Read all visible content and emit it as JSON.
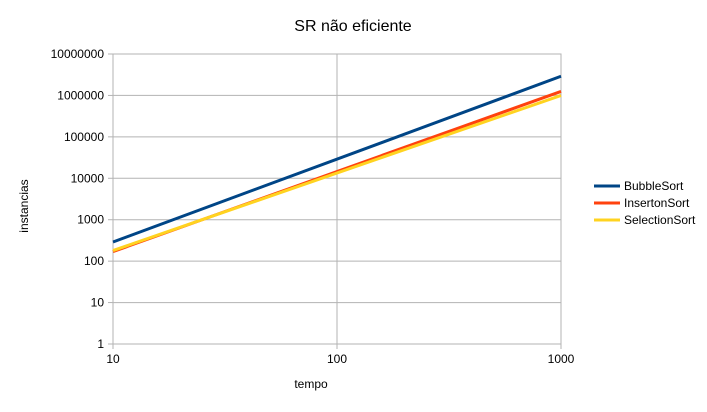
{
  "chart_data": {
    "type": "line",
    "title": "SR não eficiente",
    "xlabel": "tempo",
    "ylabel": "instancias",
    "x_scale": "log",
    "y_scale": "log",
    "xlim": [
      10,
      1000
    ],
    "ylim": [
      1,
      10000000
    ],
    "x_ticks": [
      "10",
      "100",
      "1000"
    ],
    "y_ticks": [
      "1",
      "10",
      "100",
      "1000",
      "10000",
      "100000",
      "1000000",
      "10000000"
    ],
    "grid": true,
    "legend_position": "right",
    "x": [
      10,
      1000
    ],
    "series": [
      {
        "name": "BubbleSort",
        "color": "#004586",
        "values": [
          290,
          2900000
        ]
      },
      {
        "name": "InsertonSort",
        "color": "#ff420e",
        "values": [
          170,
          1250000
        ]
      },
      {
        "name": "SelectionSort",
        "color": "#ffd320",
        "values": [
          180,
          1000000
        ]
      }
    ]
  }
}
